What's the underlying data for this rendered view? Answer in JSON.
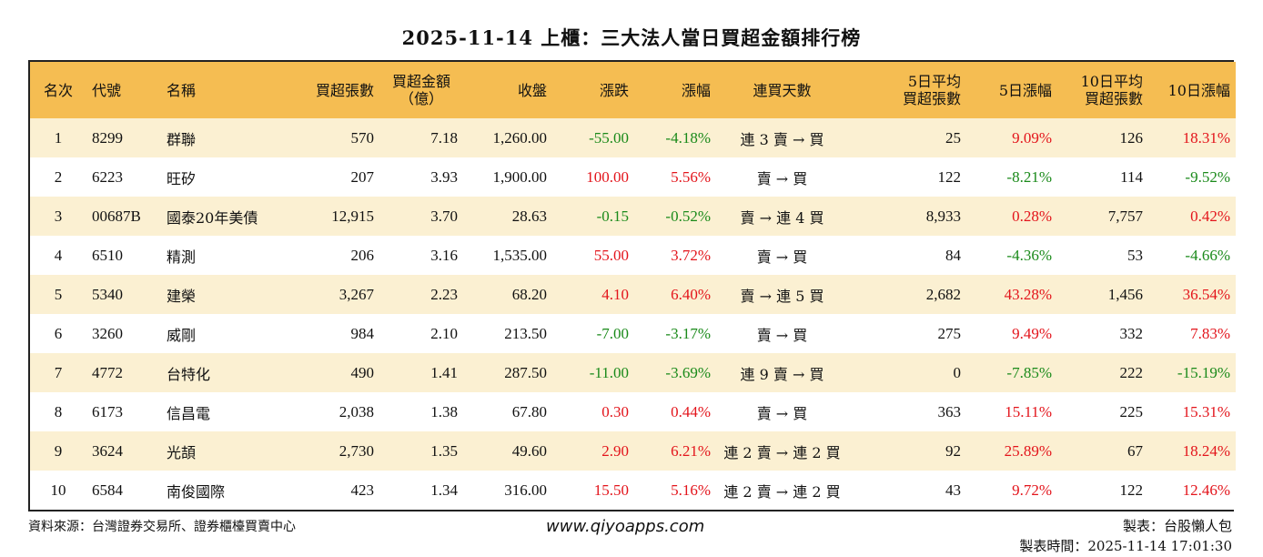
{
  "title": "2025-11-14 上櫃：三大法人當日買超金額排行榜",
  "headers": {
    "rank": "名次",
    "code": "代號",
    "name": "名稱",
    "net_shares": "買超張數",
    "net_amount_1": "買超金額",
    "net_amount_2": "（億）",
    "close": "收盤",
    "change": "漲跌",
    "pct": "漲幅",
    "streak": "連買天數",
    "avg5_1": "5日平均",
    "avg5_2": "買超張數",
    "pct5": "5日漲幅",
    "avg10_1": "10日平均",
    "avg10_2": "買超張數",
    "pct10": "10日漲幅"
  },
  "rows": [
    {
      "rank": "1",
      "code": "8299",
      "name": "群聯",
      "net_shares": "570",
      "net_amount": "7.18",
      "close": "1,260.00",
      "change": "-55.00",
      "change_dir": "down",
      "pct": "-4.18%",
      "pct_dir": "down",
      "streak": "連 3 賣 → 買",
      "avg5": "25",
      "pct5": "9.09%",
      "pct5_dir": "up",
      "avg10": "126",
      "pct10": "18.31%",
      "pct10_dir": "up"
    },
    {
      "rank": "2",
      "code": "6223",
      "name": "旺矽",
      "net_shares": "207",
      "net_amount": "3.93",
      "close": "1,900.00",
      "change": "100.00",
      "change_dir": "up",
      "pct": "5.56%",
      "pct_dir": "up",
      "streak": "賣 → 買",
      "avg5": "122",
      "pct5": "-8.21%",
      "pct5_dir": "down",
      "avg10": "114",
      "pct10": "-9.52%",
      "pct10_dir": "down"
    },
    {
      "rank": "3",
      "code": "00687B",
      "name": "國泰20年美債",
      "net_shares": "12,915",
      "net_amount": "3.70",
      "close": "28.63",
      "change": "-0.15",
      "change_dir": "down",
      "pct": "-0.52%",
      "pct_dir": "down",
      "streak": "賣 → 連 4 買",
      "avg5": "8,933",
      "pct5": "0.28%",
      "pct5_dir": "up",
      "avg10": "7,757",
      "pct10": "0.42%",
      "pct10_dir": "up"
    },
    {
      "rank": "4",
      "code": "6510",
      "name": "精測",
      "net_shares": "206",
      "net_amount": "3.16",
      "close": "1,535.00",
      "change": "55.00",
      "change_dir": "up",
      "pct": "3.72%",
      "pct_dir": "up",
      "streak": "賣 → 買",
      "avg5": "84",
      "pct5": "-4.36%",
      "pct5_dir": "down",
      "avg10": "53",
      "pct10": "-4.66%",
      "pct10_dir": "down"
    },
    {
      "rank": "5",
      "code": "5340",
      "name": "建榮",
      "net_shares": "3,267",
      "net_amount": "2.23",
      "close": "68.20",
      "change": "4.10",
      "change_dir": "up",
      "pct": "6.40%",
      "pct_dir": "up",
      "streak": "賣 → 連 5 買",
      "avg5": "2,682",
      "pct5": "43.28%",
      "pct5_dir": "up",
      "avg10": "1,456",
      "pct10": "36.54%",
      "pct10_dir": "up"
    },
    {
      "rank": "6",
      "code": "3260",
      "name": "威剛",
      "net_shares": "984",
      "net_amount": "2.10",
      "close": "213.50",
      "change": "-7.00",
      "change_dir": "down",
      "pct": "-3.17%",
      "pct_dir": "down",
      "streak": "賣 → 買",
      "avg5": "275",
      "pct5": "9.49%",
      "pct5_dir": "up",
      "avg10": "332",
      "pct10": "7.83%",
      "pct10_dir": "up"
    },
    {
      "rank": "7",
      "code": "4772",
      "name": "台特化",
      "net_shares": "490",
      "net_amount": "1.41",
      "close": "287.50",
      "change": "-11.00",
      "change_dir": "down",
      "pct": "-3.69%",
      "pct_dir": "down",
      "streak": "連 9 賣 → 買",
      "avg5": "0",
      "pct5": "-7.85%",
      "pct5_dir": "down",
      "avg10": "222",
      "pct10": "-15.19%",
      "pct10_dir": "down"
    },
    {
      "rank": "8",
      "code": "6173",
      "name": "信昌電",
      "net_shares": "2,038",
      "net_amount": "1.38",
      "close": "67.80",
      "change": "0.30",
      "change_dir": "up",
      "pct": "0.44%",
      "pct_dir": "up",
      "streak": "賣 → 買",
      "avg5": "363",
      "pct5": "15.11%",
      "pct5_dir": "up",
      "avg10": "225",
      "pct10": "15.31%",
      "pct10_dir": "up"
    },
    {
      "rank": "9",
      "code": "3624",
      "name": "光頡",
      "net_shares": "2,730",
      "net_amount": "1.35",
      "close": "49.60",
      "change": "2.90",
      "change_dir": "up",
      "pct": "6.21%",
      "pct_dir": "up",
      "streak": "連 2 賣 → 連 2 買",
      "avg5": "92",
      "pct5": "25.89%",
      "pct5_dir": "up",
      "avg10": "67",
      "pct10": "18.24%",
      "pct10_dir": "up"
    },
    {
      "rank": "10",
      "code": "6584",
      "name": "南俊國際",
      "net_shares": "423",
      "net_amount": "1.34",
      "close": "316.00",
      "change": "15.50",
      "change_dir": "up",
      "pct": "5.16%",
      "pct_dir": "up",
      "streak": "連 2 賣 → 連 2 買",
      "avg5": "43",
      "pct5": "9.72%",
      "pct5_dir": "up",
      "avg10": "122",
      "pct10": "12.46%",
      "pct10_dir": "up"
    }
  ],
  "colors": {
    "header_bg": "#f5bd52",
    "row_alt_bg": "#fbf0d2",
    "up": "#e3141b",
    "down": "#1a8a1a"
  },
  "footer": {
    "source": "資料來源：台灣證券交易所、證券櫃檯買賣中心",
    "website": "www.qiyoapps.com",
    "author": "製表：台股懶人包",
    "time": "製表時間：2025-11-14 17:01:30"
  }
}
